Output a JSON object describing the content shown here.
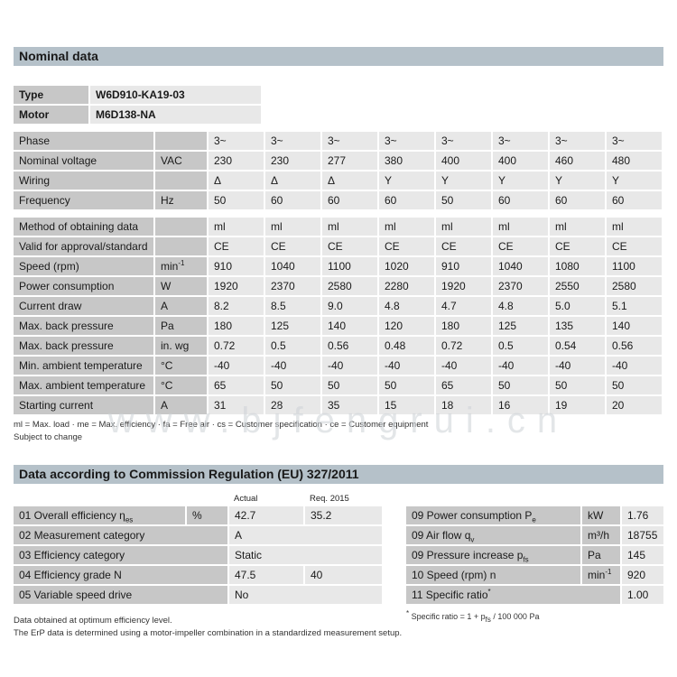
{
  "colors": {
    "section_header_bg": "#b5c1c9",
    "label_cell_bg": "#c7c7c7",
    "value_cell_bg": "#e8e8e8",
    "text": "#1a1a1a"
  },
  "watermark": {
    "text": "www.bjfengrui.cn"
  },
  "nominal": {
    "title": "Nominal data",
    "type_label": "Type",
    "type_value": "W6D910-KA19-03",
    "motor_label": "Motor",
    "motor_value": "M6D138-NA",
    "rows": [
      {
        "label": "Phase",
        "unit": "",
        "unit_sup": "",
        "gap": false,
        "values": [
          "3~",
          "3~",
          "3~",
          "3~",
          "3~",
          "3~",
          "3~",
          "3~"
        ]
      },
      {
        "label": "Nominal voltage",
        "unit": "VAC",
        "unit_sup": "",
        "gap": false,
        "values": [
          "230",
          "230",
          "277",
          "380",
          "400",
          "400",
          "460",
          "480"
        ]
      },
      {
        "label": "Wiring",
        "unit": "",
        "unit_sup": "",
        "gap": false,
        "values": [
          "Δ",
          "Δ",
          "Δ",
          "Y",
          "Y",
          "Y",
          "Y",
          "Y"
        ]
      },
      {
        "label": "Frequency",
        "unit": "Hz",
        "unit_sup": "",
        "gap": false,
        "values": [
          "50",
          "60",
          "60",
          "60",
          "50",
          "60",
          "60",
          "60"
        ]
      },
      {
        "label": "Method of obtaining data",
        "unit": "",
        "unit_sup": "",
        "gap": true,
        "values": [
          "ml",
          "ml",
          "ml",
          "ml",
          "ml",
          "ml",
          "ml",
          "ml"
        ]
      },
      {
        "label": "Valid for approval/standard",
        "unit": "",
        "unit_sup": "",
        "gap": false,
        "values": [
          "CE",
          "CE",
          "CE",
          "CE",
          "CE",
          "CE",
          "CE",
          "CE"
        ]
      },
      {
        "label": "Speed (rpm)",
        "unit": "min",
        "unit_sup": "-1",
        "gap": false,
        "values": [
          "910",
          "1040",
          "1100",
          "1020",
          "910",
          "1040",
          "1080",
          "1100"
        ]
      },
      {
        "label": "Power consumption",
        "unit": "W",
        "unit_sup": "",
        "gap": false,
        "values": [
          "1920",
          "2370",
          "2580",
          "2280",
          "1920",
          "2370",
          "2550",
          "2580"
        ]
      },
      {
        "label": "Current draw",
        "unit": "A",
        "unit_sup": "",
        "gap": false,
        "values": [
          "8.2",
          "8.5",
          "9.0",
          "4.8",
          "4.7",
          "4.8",
          "5.0",
          "5.1"
        ]
      },
      {
        "label": "Max. back pressure",
        "unit": "Pa",
        "unit_sup": "",
        "gap": false,
        "values": [
          "180",
          "125",
          "140",
          "120",
          "180",
          "125",
          "135",
          "140"
        ]
      },
      {
        "label": "Max. back pressure",
        "unit": "in. wg",
        "unit_sup": "",
        "gap": false,
        "values": [
          "0.72",
          "0.5",
          "0.56",
          "0.48",
          "0.72",
          "0.5",
          "0.54",
          "0.56"
        ]
      },
      {
        "label": "Min. ambient temperature",
        "unit": "°C",
        "unit_sup": "",
        "gap": false,
        "values": [
          "-40",
          "-40",
          "-40",
          "-40",
          "-40",
          "-40",
          "-40",
          "-40"
        ]
      },
      {
        "label": "Max. ambient temperature",
        "unit": "°C",
        "unit_sup": "",
        "gap": false,
        "values": [
          "65",
          "50",
          "50",
          "50",
          "65",
          "50",
          "50",
          "50"
        ]
      },
      {
        "label": "Starting current",
        "unit": "A",
        "unit_sup": "",
        "gap": false,
        "values": [
          "31",
          "28",
          "35",
          "15",
          "18",
          "16",
          "19",
          "20"
        ]
      }
    ],
    "footnote_legend": "ml = Max. load · me = Max. efficiency · fa = Free air · cs = Customer specification · ce = Customer equipment",
    "footnote_change": "Subject to change"
  },
  "erp": {
    "title": "Data according to Commission Regulation (EU) 327/2011",
    "col_actual": "Actual",
    "col_req": "Req. 2015",
    "left_rows": [
      {
        "label": "01 Overall efficiency η",
        "label_sub": "es",
        "unit": "%",
        "actual": "42.7",
        "req": "35.2"
      },
      {
        "label": "02 Measurement category",
        "label_sub": "",
        "unit": null,
        "actual": "A",
        "req": null
      },
      {
        "label": "03 Efficiency category",
        "label_sub": "",
        "unit": null,
        "actual": "Static",
        "req": null
      },
      {
        "label": "04 Efficiency grade N",
        "label_sub": "",
        "unit": null,
        "actual": "47.5",
        "req": "40"
      },
      {
        "label": "05 Variable speed drive",
        "label_sub": "",
        "unit": null,
        "actual": "No",
        "req": null
      }
    ],
    "right_rows": [
      {
        "label": "09 Power consumption P",
        "label_sub": "e",
        "label_sup": "",
        "unit": "kW",
        "unit_sup": "",
        "value": "1.76"
      },
      {
        "label": "09 Air flow q",
        "label_sub": "v",
        "label_sup": "",
        "unit": "m³/h",
        "unit_sup": "",
        "value": "18755"
      },
      {
        "label": "09 Pressure increase p",
        "label_sub": "fs",
        "label_sup": "",
        "unit": "Pa",
        "unit_sup": "",
        "value": "145"
      },
      {
        "label": "10 Speed (rpm) n",
        "label_sub": "",
        "label_sup": "",
        "unit": "min",
        "unit_sup": "-1",
        "value": "920"
      },
      {
        "label": "11 Specific ratio",
        "label_sub": "",
        "label_sup": "*",
        "unit": null,
        "unit_sup": "",
        "value": "1.00"
      }
    ],
    "ratio_note": {
      "sup": "*",
      "pre": " Specific ratio = 1 + p",
      "sub": "fs",
      "post": " / 100 000 Pa"
    },
    "footnote1": "Data obtained at optimum efficiency level.",
    "footnote2": "The ErP data is determined using a motor-impeller combination in a standardized measurement setup."
  }
}
